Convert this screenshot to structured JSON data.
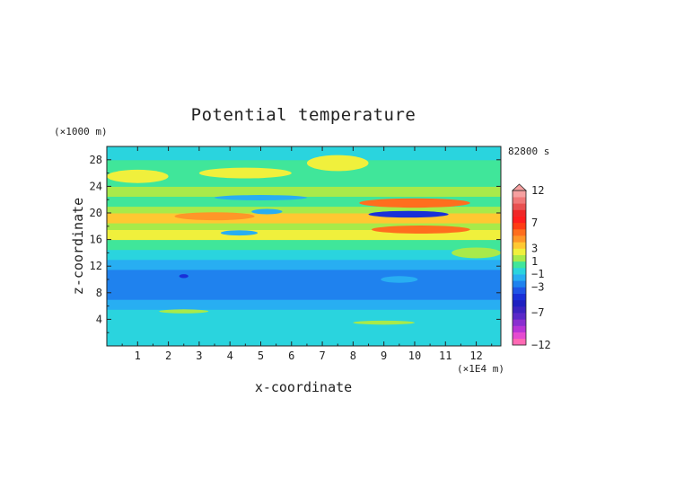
{
  "chart_data": {
    "type": "heatmap",
    "title": "Potential temperature",
    "xlabel": "x-coordinate",
    "ylabel": "z-coordinate",
    "x_unit": "(×1E4 m)",
    "y_unit": "(×1000 m)",
    "time_label": "82800 s",
    "xlim": [
      0,
      12.8
    ],
    "ylim": [
      0,
      30
    ],
    "x_ticks": [
      "1",
      "2",
      "3",
      "4",
      "5",
      "6",
      "7",
      "8",
      "9",
      "10",
      "11",
      "12"
    ],
    "y_ticks": [
      "4",
      "8",
      "12",
      "16",
      "20",
      "24",
      "28"
    ],
    "colorbar": {
      "labels": [
        "12",
        "7",
        "3",
        "1",
        "−1",
        "−3",
        "−7",
        "−12"
      ],
      "label_values": [
        12,
        7,
        3,
        1,
        -1,
        -3,
        -7,
        -12
      ],
      "levels": [
        -12,
        -11,
        -10,
        -9,
        -8,
        -7,
        -6,
        -5,
        -4,
        -3,
        -2,
        -1,
        0,
        1,
        2,
        3,
        4,
        5,
        6,
        7,
        8,
        9,
        10,
        11,
        12
      ],
      "colors": [
        "#ff69b4",
        "#e54bd0",
        "#b834d6",
        "#8a2fd0",
        "#5a28c8",
        "#3b22c0",
        "#1f1fc0",
        "#1930d8",
        "#1f55e6",
        "#1f82ee",
        "#28aef2",
        "#2ad4de",
        "#40e69a",
        "#a8ea4a",
        "#f0f03c",
        "#ffc832",
        "#ff9628",
        "#ff6e1e",
        "#ff3c14",
        "#ff1e1e",
        "#f02828",
        "#e85050",
        "#f07878",
        "#f6a0a0"
      ]
    },
    "bands": [
      {
        "z": [
          0,
          1.5
        ],
        "value": -1
      },
      {
        "z": [
          1.5,
          2.5
        ],
        "value": -0.5
      },
      {
        "z": [
          2.5,
          4
        ],
        "value": -1
      },
      {
        "z": [
          4,
          5.5
        ],
        "value": -0.5
      },
      {
        "z": [
          5.5,
          7
        ],
        "value": -2
      },
      {
        "z": [
          7,
          11.5
        ],
        "value": -3
      },
      {
        "z": [
          11.5,
          13
        ],
        "value": -2
      },
      {
        "z": [
          13,
          14.5
        ],
        "value": -1
      },
      {
        "z": [
          14.5,
          16
        ],
        "value": 0.5
      },
      {
        "z": [
          16,
          17.5
        ],
        "value": 2
      },
      {
        "z": [
          17.5,
          18.5
        ],
        "value": 1
      },
      {
        "z": [
          18.5,
          20
        ],
        "value": 3
      },
      {
        "z": [
          20,
          21
        ],
        "value": 1
      },
      {
        "z": [
          21,
          22.5
        ],
        "value": 0.5
      },
      {
        "z": [
          22.5,
          24
        ],
        "value": 1
      },
      {
        "z": [
          24,
          26
        ],
        "value": 0.5
      },
      {
        "z": [
          26,
          28
        ],
        "value": 0.5
      },
      {
        "z": [
          28,
          30
        ],
        "value": -0.5
      }
    ],
    "features": [
      {
        "x": 5.2,
        "z": 20.2,
        "rx": 0.5,
        "rz": 0.4,
        "value": -2
      },
      {
        "x": 9.8,
        "z": 19.8,
        "rx": 1.3,
        "rz": 0.5,
        "value": -5
      },
      {
        "x": 10.0,
        "z": 21.5,
        "rx": 1.8,
        "rz": 0.7,
        "value": 5
      },
      {
        "x": 10.2,
        "z": 17.5,
        "rx": 1.6,
        "rz": 0.6,
        "value": 5
      },
      {
        "x": 3.5,
        "z": 19.5,
        "rx": 1.3,
        "rz": 0.6,
        "value": 4
      },
      {
        "x": 4.3,
        "z": 17.0,
        "rx": 0.6,
        "rz": 0.4,
        "value": -2
      },
      {
        "x": 2.5,
        "z": 10.5,
        "rx": 0.15,
        "rz": 0.3,
        "value": -5
      },
      {
        "x": 9.5,
        "z": 10.0,
        "rx": 0.6,
        "rz": 0.5,
        "value": -2
      },
      {
        "x": 7.5,
        "z": 27.5,
        "rx": 1.0,
        "rz": 1.2,
        "value": 2
      },
      {
        "x": 4.5,
        "z": 26.0,
        "rx": 1.5,
        "rz": 0.8,
        "value": 2
      },
      {
        "x": 1.0,
        "z": 25.5,
        "rx": 1.0,
        "rz": 1.0,
        "value": 2
      },
      {
        "x": 12.0,
        "z": 14.0,
        "rx": 0.8,
        "rz": 0.8,
        "value": 1
      },
      {
        "x": 9.0,
        "z": 3.5,
        "rx": 1.0,
        "rz": 0.3,
        "value": 1
      },
      {
        "x": 2.5,
        "z": 5.2,
        "rx": 0.8,
        "rz": 0.3,
        "value": 1
      },
      {
        "x": 5.0,
        "z": 22.3,
        "rx": 1.5,
        "rz": 0.4,
        "value": -1.5
      }
    ]
  }
}
